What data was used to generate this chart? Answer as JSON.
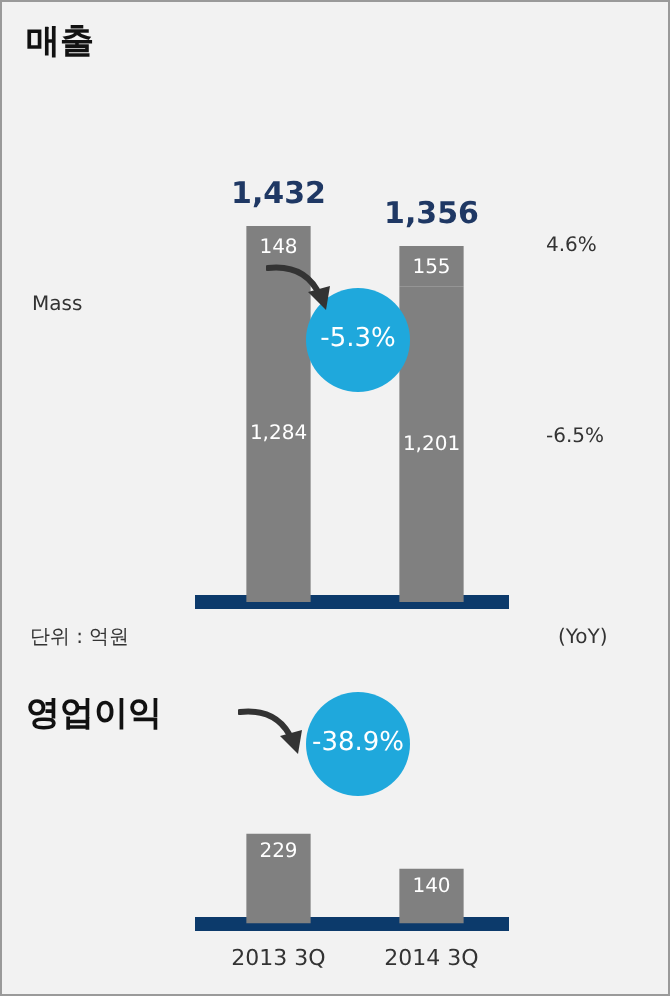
{
  "chart_data": [
    {
      "type": "bar",
      "title": "매출",
      "categories": [
        null,
        null
      ],
      "stacked": true,
      "tick_labels": false,
      "series": [
        {
          "name": "Mass",
          "color": "#808080",
          "values": [
            1284,
            1201
          ],
          "value_labels": [
            "1,284",
            "1,201"
          ]
        },
        {
          "color": "#808080",
          "values": [
            148,
            155
          ],
          "value_labels": [
            "148",
            "155"
          ]
        }
      ],
      "totals": [
        "1,432",
        "1,356"
      ],
      "annotations": [
        "-5.3%",
        "4.6%",
        "-6.5%",
        "단위 : 억원",
        "(YoY)"
      ]
    },
    {
      "type": "bar",
      "title": "영업이익",
      "categories": [
        "2013 3Q",
        "2014 3Q"
      ],
      "values": [
        229,
        140
      ],
      "color": "#808080",
      "data_labels": true,
      "annotations": [
        "-38.9%"
      ]
    }
  ]
}
